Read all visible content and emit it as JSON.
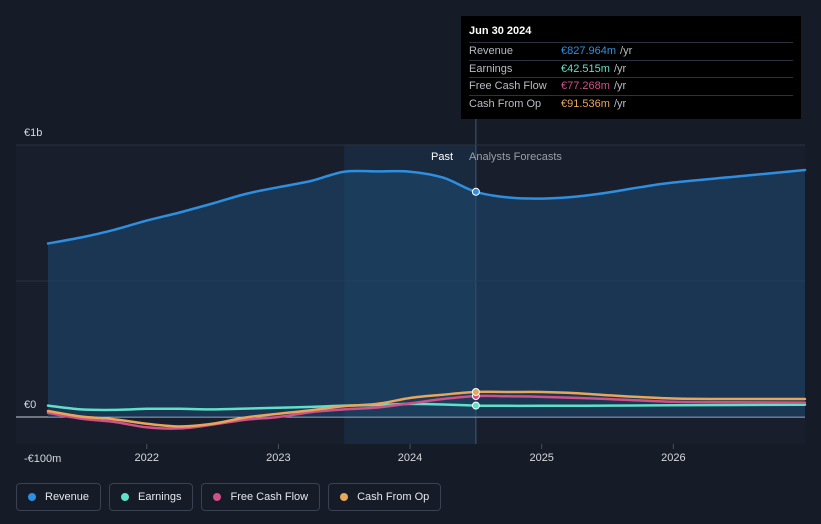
{
  "tooltip": {
    "date": "Jun 30 2024",
    "rows": [
      {
        "label": "Revenue",
        "value": "€827.964m",
        "unit": "/yr",
        "color": "#2e8fe0"
      },
      {
        "label": "Earnings",
        "value": "€42.515m",
        "unit": "/yr",
        "color": "#5fe0c8"
      },
      {
        "label": "Free Cash Flow",
        "value": "€77.268m",
        "unit": "/yr",
        "color": "#d0508a"
      },
      {
        "label": "Cash From Op",
        "value": "€91.536m",
        "unit": "/yr",
        "color": "#e8a65a"
      }
    ]
  },
  "sections": {
    "past": "Past",
    "forecast": "Analysts Forecasts"
  },
  "legend": [
    {
      "label": "Revenue",
      "color": "#2e8fe0"
    },
    {
      "label": "Earnings",
      "color": "#5fe0c8"
    },
    {
      "label": "Free Cash Flow",
      "color": "#d0508a"
    },
    {
      "label": "Cash From Op",
      "color": "#e8a65a"
    }
  ],
  "chart_data": {
    "type": "line",
    "title": "",
    "y_tick_labels": [
      "€1b",
      "€0",
      "-€100m"
    ],
    "x_tick_labels": [
      "2022",
      "2023",
      "2024",
      "2025",
      "2026"
    ],
    "ylim": [
      -100,
      1000
    ],
    "xlim": [
      2021.25,
      2027.0
    ],
    "past_end": 2024.5,
    "highlight_start": 2023.5,
    "series": [
      {
        "name": "Revenue",
        "color": "#2e8fe0",
        "area": true,
        "x": [
          2021.25,
          2021.5,
          2021.75,
          2022.0,
          2022.25,
          2022.5,
          2022.75,
          2023.0,
          2023.25,
          2023.5,
          2023.75,
          2024.0,
          2024.25,
          2024.5,
          2024.75,
          2025.0,
          2025.25,
          2025.5,
          2025.75,
          2026.0,
          2026.5,
          2027.0
        ],
        "y": [
          638,
          660,
          688,
          722,
          752,
          785,
          820,
          845,
          868,
          902,
          903,
          902,
          880,
          828,
          807,
          803,
          810,
          825,
          845,
          862,
          885,
          908
        ]
      },
      {
        "name": "Earnings",
        "color": "#5fe0c8",
        "x": [
          2021.25,
          2021.5,
          2021.75,
          2022.0,
          2022.25,
          2022.5,
          2022.75,
          2023.0,
          2023.25,
          2023.5,
          2023.75,
          2024.0,
          2024.25,
          2024.5,
          2024.75,
          2025.0,
          2025.5,
          2026.0,
          2026.5,
          2027.0
        ],
        "y": [
          42,
          28,
          26,
          30,
          30,
          28,
          31,
          34,
          37,
          42,
          44,
          48,
          46,
          42,
          41,
          41,
          42,
          43,
          44,
          45
        ]
      },
      {
        "name": "Free Cash Flow",
        "color": "#d0508a",
        "x": [
          2021.25,
          2021.5,
          2021.75,
          2022.0,
          2022.25,
          2022.5,
          2022.75,
          2023.0,
          2023.25,
          2023.5,
          2023.75,
          2024.0,
          2024.25,
          2024.5,
          2024.75,
          2025.0,
          2025.5,
          2026.0,
          2026.5,
          2027.0
        ],
        "y": [
          15,
          -6,
          -18,
          -38,
          -42,
          -28,
          -10,
          0,
          18,
          28,
          35,
          50,
          66,
          77,
          76,
          74,
          66,
          56,
          54,
          53
        ]
      },
      {
        "name": "Cash From Op",
        "color": "#e8a65a",
        "x": [
          2021.25,
          2021.5,
          2021.75,
          2022.0,
          2022.25,
          2022.5,
          2022.75,
          2023.0,
          2023.25,
          2023.5,
          2023.75,
          2024.0,
          2024.25,
          2024.5,
          2024.75,
          2025.0,
          2025.25,
          2025.5,
          2026.0,
          2026.5,
          2027.0
        ],
        "y": [
          22,
          2,
          -8,
          -25,
          -35,
          -25,
          -2,
          12,
          25,
          40,
          48,
          70,
          82,
          92,
          92,
          92,
          88,
          80,
          68,
          66,
          66
        ]
      }
    ]
  }
}
